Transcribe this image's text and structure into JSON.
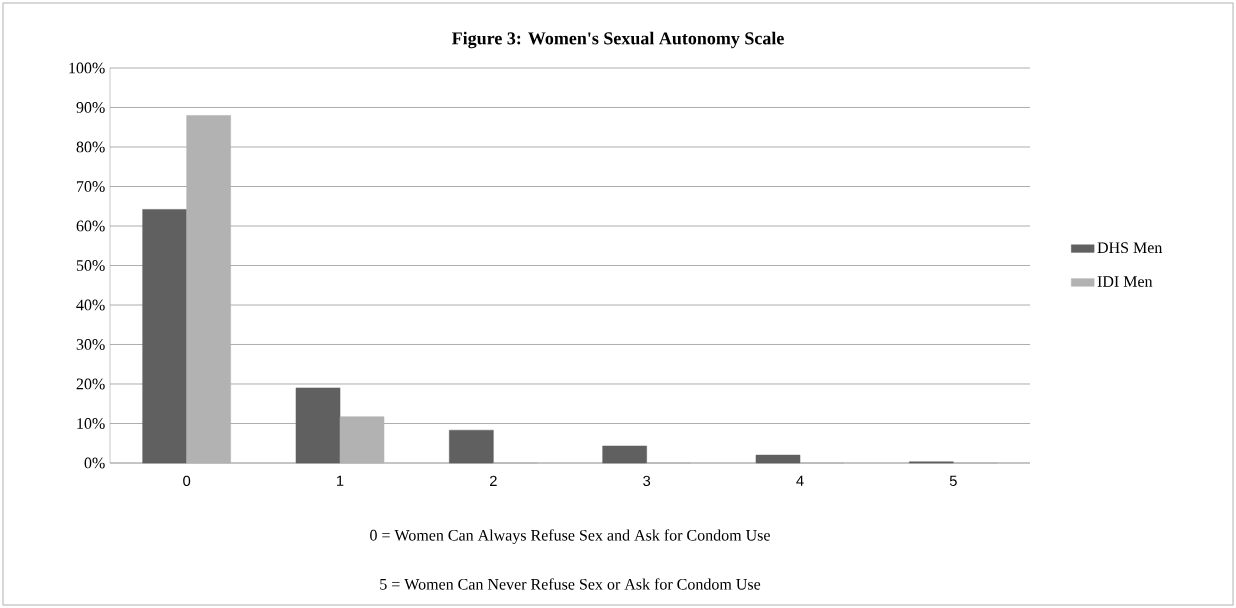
{
  "chart_data": {
    "type": "bar",
    "title": "Figure 3: Women's Sexual Autonomy Scale",
    "xlabel": "0 = Women Can Always Refuse Sex and Ask for Condom Use",
    "annotations": [
      "5 = Women Can Never Refuse Sex or Ask for Condom Use"
    ],
    "categories": [
      "0",
      "1",
      "2",
      "3",
      "4",
      "5"
    ],
    "series": [
      {
        "name": "DHS Men",
        "color": "#606060",
        "values": [
          64.2,
          19.0,
          8.3,
          4.3,
          2.0,
          0.3
        ]
      },
      {
        "name": "IDI Men",
        "color": "#b2b2b2",
        "values": [
          88.0,
          11.7,
          0,
          0,
          0,
          0
        ]
      }
    ],
    "ylim": [
      0,
      100
    ],
    "yticks": [
      {
        "value": 0,
        "label": "0%"
      },
      {
        "value": 10,
        "label": "10%"
      },
      {
        "value": 20,
        "label": "20%"
      },
      {
        "value": 30,
        "label": "30%"
      },
      {
        "value": 40,
        "label": "40%"
      },
      {
        "value": 50,
        "label": "50%"
      },
      {
        "value": 60,
        "label": "60%"
      },
      {
        "value": 70,
        "label": "70%"
      },
      {
        "value": 80,
        "label": "80%"
      },
      {
        "value": 90,
        "label": "90%"
      },
      {
        "value": 100,
        "label": "100%"
      }
    ],
    "grid": "y",
    "legend": "right"
  }
}
